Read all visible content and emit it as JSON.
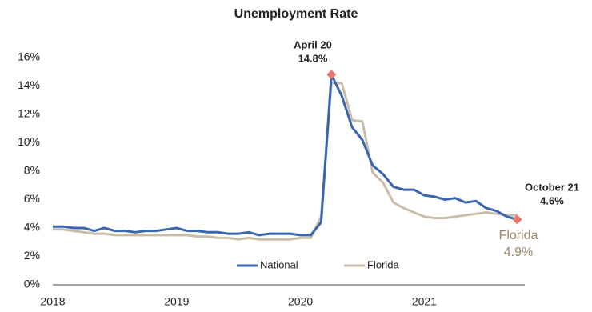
{
  "chart_data": {
    "type": "line",
    "title": "Unemployment Rate",
    "categories": [
      "2018",
      null,
      null,
      null,
      null,
      null,
      null,
      null,
      null,
      null,
      null,
      null,
      "2019",
      null,
      null,
      null,
      null,
      null,
      null,
      null,
      null,
      null,
      null,
      null,
      "2020",
      null,
      null,
      null,
      null,
      null,
      null,
      null,
      null,
      null,
      null,
      null,
      "2021",
      null,
      null,
      null,
      null,
      null,
      null,
      null,
      null,
      null
    ],
    "series": [
      {
        "name": "National",
        "color": "#3a66b0",
        "values": [
          4.1,
          4.1,
          4.0,
          4.0,
          3.8,
          4.0,
          3.8,
          3.8,
          3.7,
          3.8,
          3.8,
          3.9,
          4.0,
          3.8,
          3.8,
          3.7,
          3.7,
          3.6,
          3.6,
          3.7,
          3.5,
          3.6,
          3.6,
          3.6,
          3.5,
          3.5,
          4.4,
          14.8,
          13.3,
          11.1,
          10.2,
          8.4,
          7.8,
          6.9,
          6.7,
          6.7,
          6.3,
          6.2,
          6.0,
          6.1,
          5.8,
          5.9,
          5.4,
          5.2,
          4.8,
          4.6
        ]
      },
      {
        "name": "Florida",
        "color": "#c9bca8",
        "values": [
          3.9,
          3.9,
          3.8,
          3.7,
          3.6,
          3.6,
          3.5,
          3.5,
          3.5,
          3.5,
          3.5,
          3.5,
          3.5,
          3.5,
          3.4,
          3.4,
          3.3,
          3.3,
          3.2,
          3.3,
          3.2,
          3.2,
          3.2,
          3.2,
          3.3,
          3.3,
          4.8,
          14.2,
          14.2,
          11.6,
          11.5,
          7.9,
          7.2,
          5.8,
          5.4,
          5.1,
          4.8,
          4.7,
          4.7,
          4.8,
          4.9,
          5.0,
          5.1,
          5.0,
          4.9,
          4.9
        ]
      }
    ],
    "ylim": [
      0,
      16
    ],
    "yticks": [
      {
        "value": 0,
        "label": "0%"
      },
      {
        "value": 2,
        "label": "2%"
      },
      {
        "value": 4,
        "label": "4%"
      },
      {
        "value": 6,
        "label": "6%"
      },
      {
        "value": 8,
        "label": "8%"
      },
      {
        "value": 10,
        "label": "10%"
      },
      {
        "value": 12,
        "label": "12%"
      },
      {
        "value": 14,
        "label": "14%"
      },
      {
        "value": 16,
        "label": "16%"
      }
    ],
    "markers": {
      "series": 0,
      "indices": [
        27,
        45
      ],
      "color": "#e8776b"
    },
    "annotations": [
      {
        "lines": [
          "April 20",
          "14.8%"
        ]
      },
      {
        "lines": [
          "October 21",
          "4.6%"
        ]
      },
      {
        "lines": [
          "Florida",
          "4.9%"
        ]
      }
    ]
  }
}
